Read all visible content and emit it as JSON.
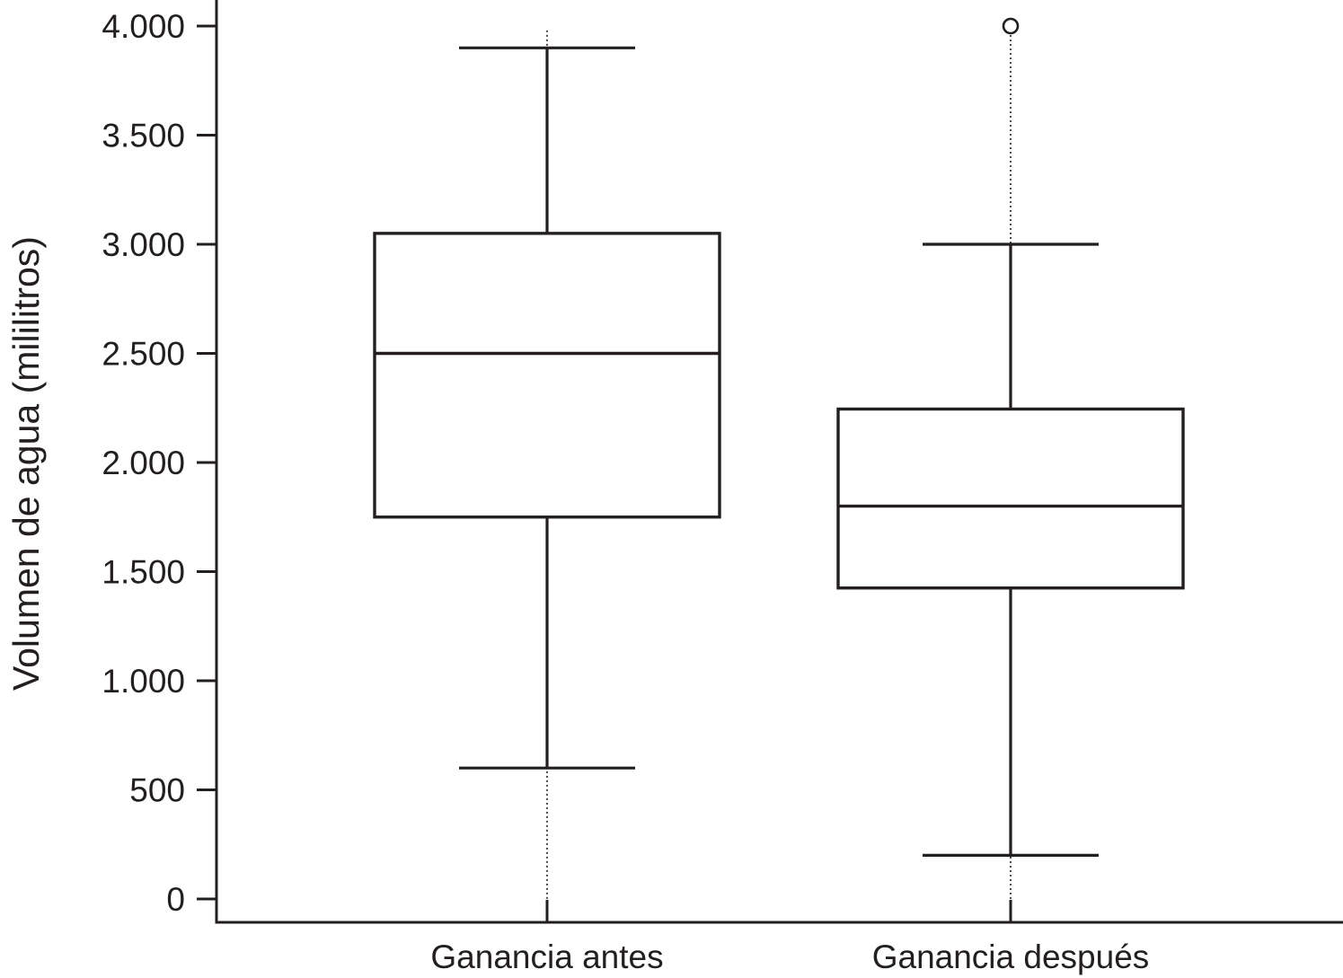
{
  "chart_data": {
    "type": "boxplot",
    "title": "",
    "xlabel": "",
    "ylabel": "Volumen de agua (mililitros)",
    "ylim": [
      -110,
      4100
    ],
    "yticks": [
      0,
      500,
      1000,
      1500,
      2000,
      2500,
      3000,
      3500,
      4000
    ],
    "ytick_labels": [
      "0",
      "500",
      "1.000",
      "1.500",
      "2.000",
      "2.500",
      "3.000",
      "3.500",
      "4.000"
    ],
    "grid": false,
    "stroke_color": "#231f20",
    "categories": [
      "Ganancia antes",
      "Ganancia después"
    ],
    "boxes": [
      {
        "category": "Ganancia antes",
        "whisker_low": 600,
        "q1": 1750,
        "median": 2500,
        "q3": 3050,
        "whisker_high": 3900,
        "dotted_range": [
          0,
          3980
        ],
        "outliers": []
      },
      {
        "category": "Ganancia después",
        "whisker_low": 200,
        "q1": 1425,
        "median": 1800,
        "q3": 2245,
        "whisker_high": 3000,
        "dotted_range": [
          0,
          4000
        ],
        "outliers": [
          4000
        ]
      }
    ]
  }
}
